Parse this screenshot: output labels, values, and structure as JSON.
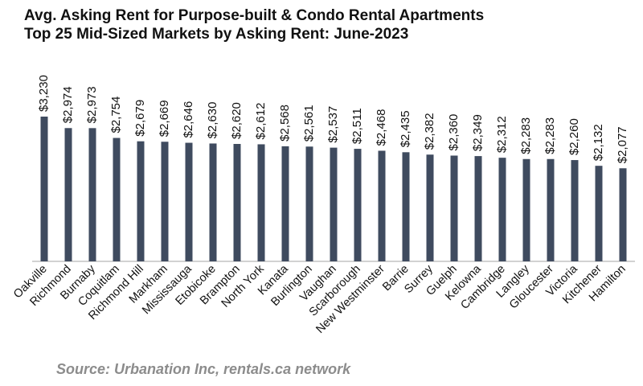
{
  "title_lines": [
    "Avg. Asking Rent for Purpose-built & Condo Rental Apartments",
    "Top 25 Mid-Sized Markets by Asking Rent: June-2023"
  ],
  "source": "Source: Urbanation Inc, rentals.ca network",
  "chart_data": {
    "type": "bar",
    "title": "Avg. Asking Rent for Purpose-built & Condo Rental Apartments / Top 25 Mid-Sized Markets by Asking Rent: June-2023",
    "categories": [
      "Oakville",
      "Richmond",
      "Burnaby",
      "Coquitlam",
      "Richmond Hill",
      "Markham",
      "Mississauga",
      "Etobicoke",
      "Brampton",
      "North York",
      "Kanata",
      "Burlington",
      "Vaughan",
      "Scarborough",
      "New Westminster",
      "Barrie",
      "Surrey",
      "Guelph",
      "Kelowna",
      "Cambridge",
      "Langley",
      "Gloucester",
      "Victoria",
      "Kitchener",
      "Hamilton"
    ],
    "values": [
      3230,
      2974,
      2973,
      2754,
      2679,
      2669,
      2646,
      2630,
      2620,
      2612,
      2568,
      2561,
      2537,
      2511,
      2468,
      2435,
      2382,
      2360,
      2349,
      2312,
      2283,
      2283,
      2260,
      2132,
      2077
    ],
    "data_labels": [
      "$3,230",
      "$2,974",
      "$2,973",
      "$2,754",
      "$2,679",
      "$2,669",
      "$2,646",
      "$2,630",
      "$2,620",
      "$2,612",
      "$2,568",
      "$2,561",
      "$2,537",
      "$2,511",
      "$2,468",
      "$2,435",
      "$2,382",
      "$2,360",
      "$2,349",
      "$2,312",
      "$2,283",
      "$2,283",
      "$2,260",
      "$2,132",
      "$2,077"
    ],
    "xlabel": "",
    "ylabel": "",
    "ylim": [
      0,
      3230
    ],
    "grid": false,
    "legend": "none",
    "bar_color": "#3f4b5f",
    "axis_color": "#a6a6a6",
    "label_color": "#111111"
  }
}
